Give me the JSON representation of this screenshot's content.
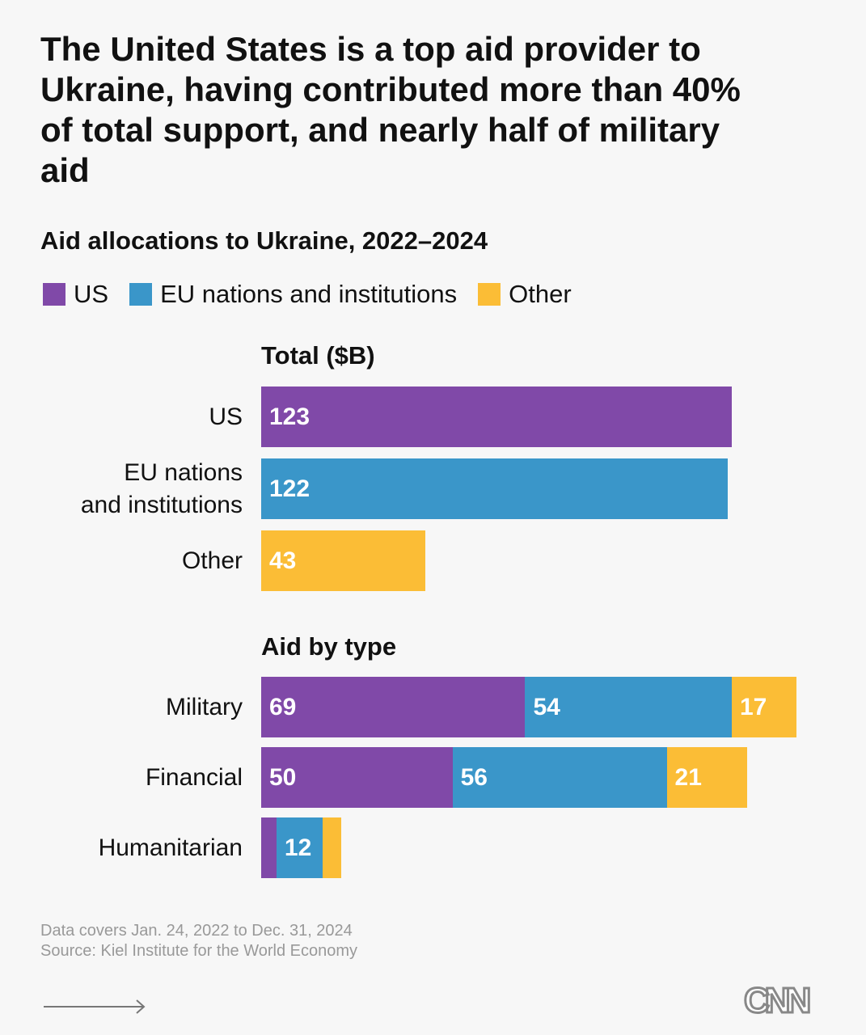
{
  "title": "The United States is a top aid provider to Ukraine, having contributed more than 40% of total support, and nearly half of military aid",
  "colors": {
    "US": "#8049a8",
    "EU": "#3a96c9",
    "Other": "#fbbd36",
    "background": "#f7f7f7"
  },
  "chart_data": {
    "type": "bar",
    "orientation": "horizontal",
    "title": "Aid allocations to Ukraine, 2022–2024",
    "legend": [
      "US",
      "EU nations and institutions",
      "Other"
    ],
    "legend_placement": "top-left",
    "grid": false,
    "panels": [
      {
        "title": "Total ($B)",
        "categories": [
          "US",
          "EU nations and institutions",
          "Other"
        ],
        "values": [
          123,
          122,
          43
        ],
        "labels": [
          "123",
          "122",
          "43"
        ]
      },
      {
        "title": "Aid by type",
        "stacked": true,
        "categories": [
          "Military",
          "Financial",
          "Humanitarian"
        ],
        "series": [
          {
            "name": "US",
            "values": [
              69,
              50,
              4
            ],
            "labels": [
              "69",
              "50",
              ""
            ]
          },
          {
            "name": "EU nations and institutions",
            "values": [
              54,
              56,
              12
            ],
            "labels": [
              "54",
              "56",
              "12"
            ]
          },
          {
            "name": "Other",
            "values": [
              17,
              21,
              5
            ],
            "labels": [
              "17",
              "21",
              ""
            ]
          }
        ]
      }
    ]
  },
  "footer": {
    "note": "Data covers Jan. 24, 2022 to Dec. 31, 2024",
    "source": "Source: Kiel Institute for the World Economy",
    "logo": "CNN",
    "arrow_icon": "arrow-right-icon"
  }
}
